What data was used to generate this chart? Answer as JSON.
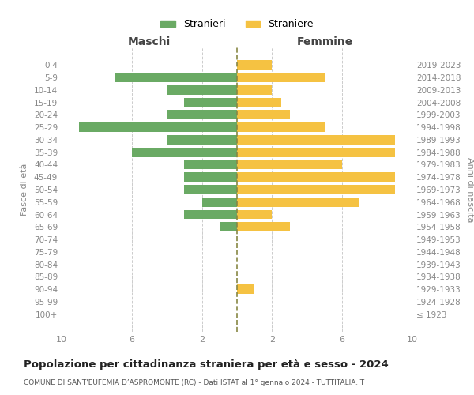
{
  "age_groups": [
    "100+",
    "95-99",
    "90-94",
    "85-89",
    "80-84",
    "75-79",
    "70-74",
    "65-69",
    "60-64",
    "55-59",
    "50-54",
    "45-49",
    "40-44",
    "35-39",
    "30-34",
    "25-29",
    "20-24",
    "15-19",
    "10-14",
    "5-9",
    "0-4"
  ],
  "birth_years": [
    "≤ 1923",
    "1924-1928",
    "1929-1933",
    "1934-1938",
    "1939-1943",
    "1944-1948",
    "1949-1953",
    "1954-1958",
    "1959-1963",
    "1964-1968",
    "1969-1973",
    "1974-1978",
    "1979-1983",
    "1984-1988",
    "1989-1993",
    "1994-1998",
    "1999-2003",
    "2004-2008",
    "2009-2013",
    "2014-2018",
    "2019-2023"
  ],
  "maschi": [
    0,
    0,
    0,
    0,
    0,
    0,
    0,
    1,
    3,
    2,
    3,
    3,
    3,
    6,
    4,
    9,
    4,
    3,
    4,
    7,
    0
  ],
  "femmine": [
    0,
    0,
    1,
    0,
    0,
    0,
    0,
    3,
    2,
    7,
    9,
    9,
    6,
    9,
    9,
    5,
    3,
    2.5,
    2,
    5,
    2
  ],
  "male_color": "#6aaa64",
  "female_color": "#f5c242",
  "dashed_line_color": "#888844",
  "title": "Popolazione per cittadinanza straniera per età e sesso - 2024",
  "subtitle": "COMUNE DI SANT'EUFEMIA D’ASPROMONTE (RC) - Dati ISTAT al 1° gennaio 2024 - TUTTITALIA.IT",
  "ylabel_left": "Fasce di età",
  "ylabel_right": "Anni di nascita",
  "legend_maschi": "Stranieri",
  "legend_femmine": "Straniere",
  "xlim": 10,
  "background_color": "#ffffff",
  "grid_color": "#cccccc"
}
